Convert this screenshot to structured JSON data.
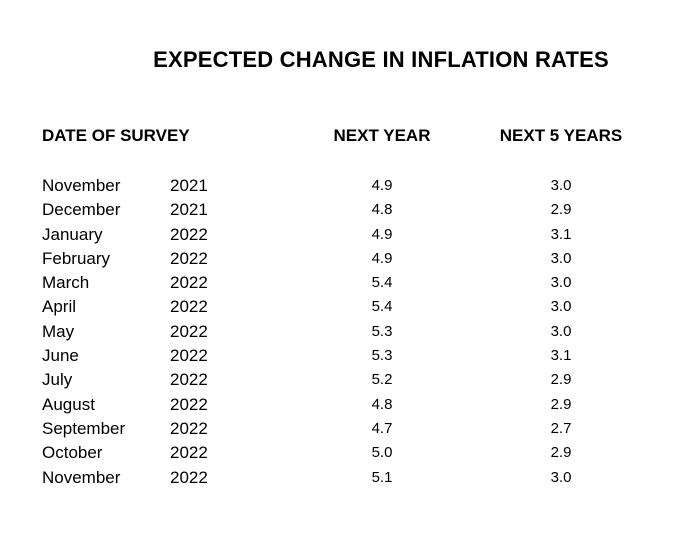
{
  "title": "EXPECTED CHANGE IN INFLATION RATES",
  "table": {
    "headers": {
      "date": "DATE OF SURVEY",
      "next_year": "NEXT YEAR",
      "next_5_years": "NEXT 5 YEARS"
    },
    "rows": [
      {
        "month": "November",
        "year": "2021",
        "next_year": "4.9",
        "next_5_years": "3.0"
      },
      {
        "month": "December",
        "year": "2021",
        "next_year": "4.8",
        "next_5_years": "2.9"
      },
      {
        "month": "January",
        "year": "2022",
        "next_year": "4.9",
        "next_5_years": "3.1"
      },
      {
        "month": "February",
        "year": "2022",
        "next_year": "4.9",
        "next_5_years": "3.0"
      },
      {
        "month": "March",
        "year": "2022",
        "next_year": "5.4",
        "next_5_years": "3.0"
      },
      {
        "month": "April",
        "year": "2022",
        "next_year": "5.4",
        "next_5_years": "3.0"
      },
      {
        "month": "May",
        "year": "2022",
        "next_year": "5.3",
        "next_5_years": "3.0"
      },
      {
        "month": "June",
        "year": "2022",
        "next_year": "5.3",
        "next_5_years": "3.1"
      },
      {
        "month": "July",
        "year": "2022",
        "next_year": "5.2",
        "next_5_years": "2.9"
      },
      {
        "month": "August",
        "year": "2022",
        "next_year": "4.8",
        "next_5_years": "2.9"
      },
      {
        "month": "September",
        "year": "2022",
        "next_year": "4.7",
        "next_5_years": "2.7"
      },
      {
        "month": "October",
        "year": "2022",
        "next_year": "5.0",
        "next_5_years": "2.9"
      },
      {
        "month": "November",
        "year": "2022",
        "next_year": "5.1",
        "next_5_years": "3.0"
      }
    ]
  }
}
